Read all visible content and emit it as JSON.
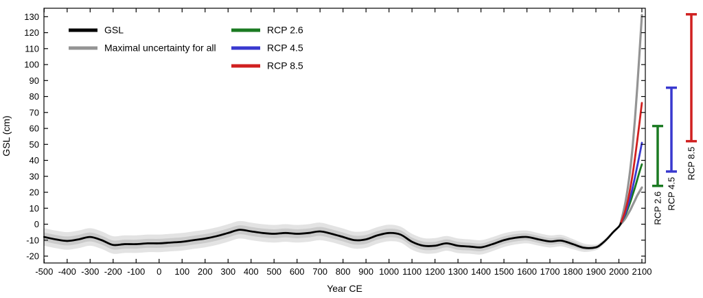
{
  "figure": {
    "background": "#ffffff"
  },
  "chart_data": {
    "type": "line",
    "title": "",
    "xlabel": "Year CE",
    "ylabel": "GSL (cm)",
    "xlim": [
      -501,
      2115
    ],
    "ylim": [
      -24.3,
      135.3
    ],
    "grid": false,
    "x_ticks": [
      -500,
      -400,
      -300,
      -200,
      -100,
      0,
      100,
      200,
      300,
      400,
      500,
      600,
      700,
      800,
      900,
      1000,
      1100,
      1200,
      1300,
      1400,
      1500,
      1600,
      1700,
      1800,
      1900,
      2000,
      2100
    ],
    "y_ticks": [
      -20,
      -10,
      0,
      10,
      20,
      30,
      40,
      50,
      60,
      70,
      80,
      90,
      100,
      110,
      120,
      130
    ],
    "legend": [
      {
        "label": "GSL",
        "color": "#000000",
        "column": 1
      },
      {
        "label": "Maximal uncertainty for all",
        "color": "#949494",
        "column": 1
      },
      {
        "label": "RCP 2.6",
        "color": "#1a7a21",
        "column": 2
      },
      {
        "label": "RCP 4.5",
        "color": "#3939cf",
        "column": 2
      },
      {
        "label": "RCP 8.5",
        "color": "#d02020",
        "column": 2
      }
    ],
    "colors": {
      "gsl": "#000000",
      "uncertainty_line": "#949494",
      "band_outer": "#e3e3e3",
      "band_inner": "#cbcbcb",
      "rcp26": "#1a7a21",
      "rcp45": "#3939cf",
      "rcp85": "#d02020"
    },
    "gsl_series": [
      [
        -500,
        -8,
        2.8,
        5.5
      ],
      [
        -450,
        -9.5,
        2.8,
        5.5
      ],
      [
        -400,
        -10.5,
        2.8,
        5.5
      ],
      [
        -350,
        -9.5,
        2.8,
        5.5
      ],
      [
        -300,
        -8,
        2.8,
        5.5
      ],
      [
        -250,
        -10,
        2.8,
        5.5
      ],
      [
        -200,
        -13,
        2.8,
        5.5
      ],
      [
        -150,
        -12.5,
        2.8,
        5.5
      ],
      [
        -100,
        -12.5,
        2.8,
        5.5
      ],
      [
        -50,
        -12,
        2.8,
        5.5
      ],
      [
        0,
        -12,
        2.8,
        5.5
      ],
      [
        50,
        -11.5,
        2.8,
        5.5
      ],
      [
        100,
        -11,
        2.8,
        5.5
      ],
      [
        150,
        -10,
        2.8,
        5.5
      ],
      [
        200,
        -9,
        2.8,
        5.5
      ],
      [
        250,
        -7.5,
        2.8,
        5.5
      ],
      [
        300,
        -5.5,
        2.8,
        5.5
      ],
      [
        350,
        -3.5,
        2.8,
        5.5
      ],
      [
        400,
        -4.5,
        2.8,
        5.5
      ],
      [
        450,
        -5.5,
        2.8,
        5.5
      ],
      [
        500,
        -6,
        2.8,
        5.5
      ],
      [
        550,
        -5.5,
        2.8,
        5.5
      ],
      [
        600,
        -6,
        2.8,
        5.5
      ],
      [
        650,
        -5.5,
        2.8,
        5.5
      ],
      [
        700,
        -4.5,
        2.8,
        5.5
      ],
      [
        750,
        -6,
        2.8,
        5.3
      ],
      [
        800,
        -8,
        2.8,
        5.3
      ],
      [
        850,
        -10,
        2.8,
        5.3
      ],
      [
        900,
        -9.5,
        2.8,
        5.3
      ],
      [
        950,
        -7,
        2.7,
        5.2
      ],
      [
        1000,
        -5.5,
        2.7,
        5.2
      ],
      [
        1050,
        -6.5,
        2.7,
        5.0
      ],
      [
        1100,
        -11,
        2.6,
        5.0
      ],
      [
        1150,
        -13.5,
        2.6,
        4.8
      ],
      [
        1200,
        -13.5,
        2.5,
        4.8
      ],
      [
        1250,
        -12,
        2.5,
        4.6
      ],
      [
        1300,
        -13.5,
        2.5,
        4.6
      ],
      [
        1350,
        -14,
        2.4,
        4.5
      ],
      [
        1400,
        -14.5,
        2.4,
        4.5
      ],
      [
        1450,
        -12.5,
        2.4,
        4.4
      ],
      [
        1500,
        -10,
        2.3,
        4.3
      ],
      [
        1550,
        -8.5,
        2.3,
        4.2
      ],
      [
        1600,
        -8,
        2.2,
        4.0
      ],
      [
        1650,
        -9.5,
        2.2,
        3.9
      ],
      [
        1700,
        -10.8,
        2.1,
        3.8
      ],
      [
        1750,
        -10.3,
        2.0,
        3.6
      ],
      [
        1800,
        -12.5,
        1.8,
        3.2
      ],
      [
        1850,
        -14.8,
        1.4,
        2.6
      ],
      [
        1900,
        -14.5,
        1.0,
        1.8
      ],
      [
        1925,
        -12.3,
        0.9,
        1.6
      ],
      [
        1950,
        -9,
        0.7,
        1.2
      ],
      [
        1975,
        -5,
        0.5,
        0.9
      ],
      [
        2000,
        -1.5,
        0.4,
        0.7
      ],
      [
        2008,
        0.5,
        0.3,
        0.5
      ]
    ],
    "projections": {
      "rcp26": [
        [
          2008,
          0.5
        ],
        [
          2020,
          3.5
        ],
        [
          2030,
          6.5
        ],
        [
          2040,
          10
        ],
        [
          2050,
          14
        ],
        [
          2060,
          18.5
        ],
        [
          2070,
          23
        ],
        [
          2080,
          28
        ],
        [
          2090,
          33
        ],
        [
          2100,
          37.5
        ]
      ],
      "rcp45": [
        [
          2008,
          0.5
        ],
        [
          2020,
          4
        ],
        [
          2030,
          7.5
        ],
        [
          2040,
          12
        ],
        [
          2050,
          17
        ],
        [
          2060,
          23
        ],
        [
          2070,
          29.5
        ],
        [
          2080,
          36.5
        ],
        [
          2090,
          43.5
        ],
        [
          2100,
          51
        ]
      ],
      "rcp85": [
        [
          2008,
          0.5
        ],
        [
          2020,
          5
        ],
        [
          2030,
          9.5
        ],
        [
          2040,
          15.5
        ],
        [
          2050,
          23
        ],
        [
          2060,
          31.5
        ],
        [
          2070,
          41.5
        ],
        [
          2080,
          52.5
        ],
        [
          2090,
          64
        ],
        [
          2100,
          76
        ]
      ]
    },
    "uncertainty_envelope": {
      "upper": [
        [
          2008,
          1
        ],
        [
          2020,
          8
        ],
        [
          2030,
          15
        ],
        [
          2040,
          24
        ],
        [
          2050,
          35
        ],
        [
          2060,
          49
        ],
        [
          2070,
          66
        ],
        [
          2080,
          86
        ],
        [
          2090,
          108
        ],
        [
          2100,
          131
        ]
      ],
      "lower": [
        [
          2008,
          0
        ],
        [
          2020,
          2
        ],
        [
          2030,
          4
        ],
        [
          2040,
          6.5
        ],
        [
          2050,
          9
        ],
        [
          2060,
          12
        ],
        [
          2070,
          15
        ],
        [
          2080,
          18
        ],
        [
          2090,
          20.5
        ],
        [
          2100,
          23
        ]
      ]
    },
    "error_bars_2100": [
      {
        "label": "RCP 2.6",
        "color": "#1a7a21",
        "min": 24,
        "max": 61.5
      },
      {
        "label": "RCP 4.5",
        "color": "#3939cf",
        "min": 33,
        "max": 85.5
      },
      {
        "label": "RCP 8.5",
        "color": "#d02020",
        "min": 52,
        "max": 131.5
      }
    ]
  }
}
